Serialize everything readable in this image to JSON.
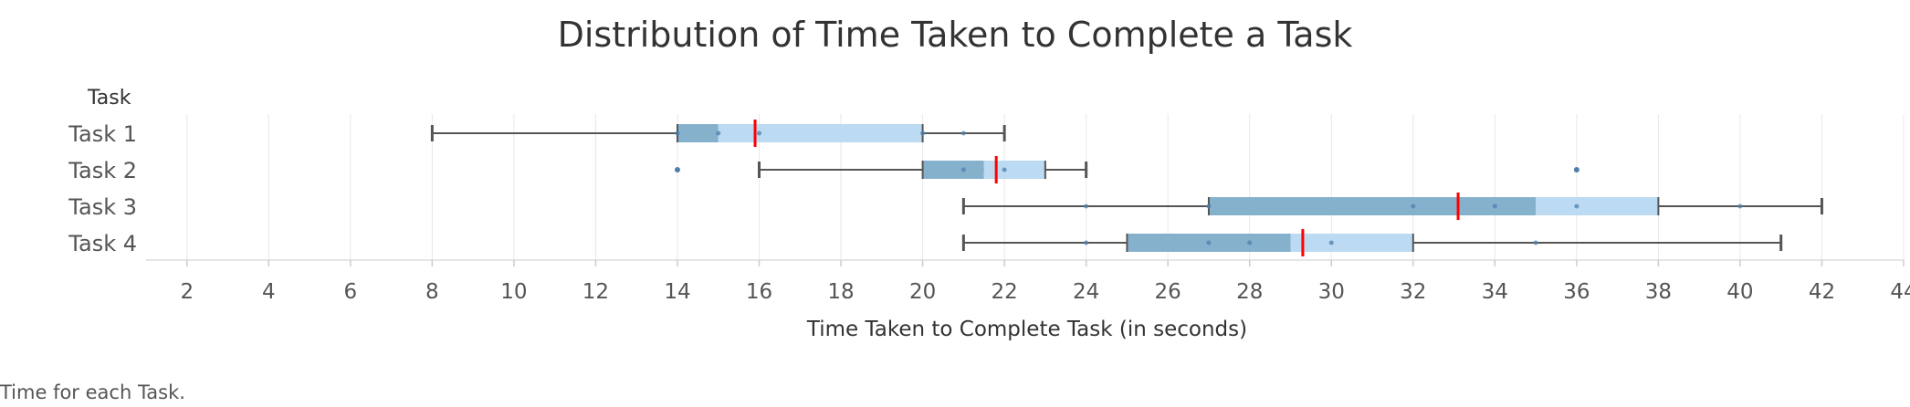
{
  "chart_data": {
    "type": "box",
    "title": "Distribution of Time Taken to Complete a Task",
    "category_header": "Task",
    "xlabel": "Time Taken to Complete Task (in seconds)",
    "caption": "Time for each Task.",
    "x_ticks": [
      2,
      4,
      6,
      8,
      10,
      12,
      14,
      16,
      18,
      20,
      22,
      24,
      26,
      28,
      30,
      32,
      34,
      36,
      38,
      40,
      42,
      44
    ],
    "xlim": [
      1,
      44
    ],
    "grid": true,
    "colors": {
      "lower_box": "#86b1cd",
      "upper_box": "#bcdaf1",
      "whisker": "#555555",
      "mean_line": "#ff0000",
      "point": "#4e7fab",
      "grid": "#e8e8e8"
    },
    "tasks": [
      {
        "name": "Task 1",
        "min": 8,
        "q1": 14,
        "median": 15,
        "q3": 20,
        "max": 22,
        "mean": 15.9,
        "points": [
          14,
          15,
          16,
          20,
          21
        ],
        "outliers": []
      },
      {
        "name": "Task 2",
        "min": 16,
        "q1": 20,
        "median": 21.5,
        "q3": 23,
        "max": 24,
        "mean": 21.8,
        "points": [
          21,
          22
        ],
        "outliers": [
          14,
          36
        ]
      },
      {
        "name": "Task 3",
        "min": 21,
        "q1": 27,
        "median": 35,
        "q3": 38,
        "max": 42,
        "mean": 33.1,
        "points": [
          24,
          27,
          32,
          34,
          36,
          40
        ],
        "outliers": []
      },
      {
        "name": "Task 4",
        "min": 21,
        "q1": 25,
        "median": 29,
        "q3": 32,
        "max": 41,
        "mean": 29.3,
        "points": [
          24,
          27,
          28,
          30,
          35
        ],
        "outliers": []
      }
    ]
  }
}
